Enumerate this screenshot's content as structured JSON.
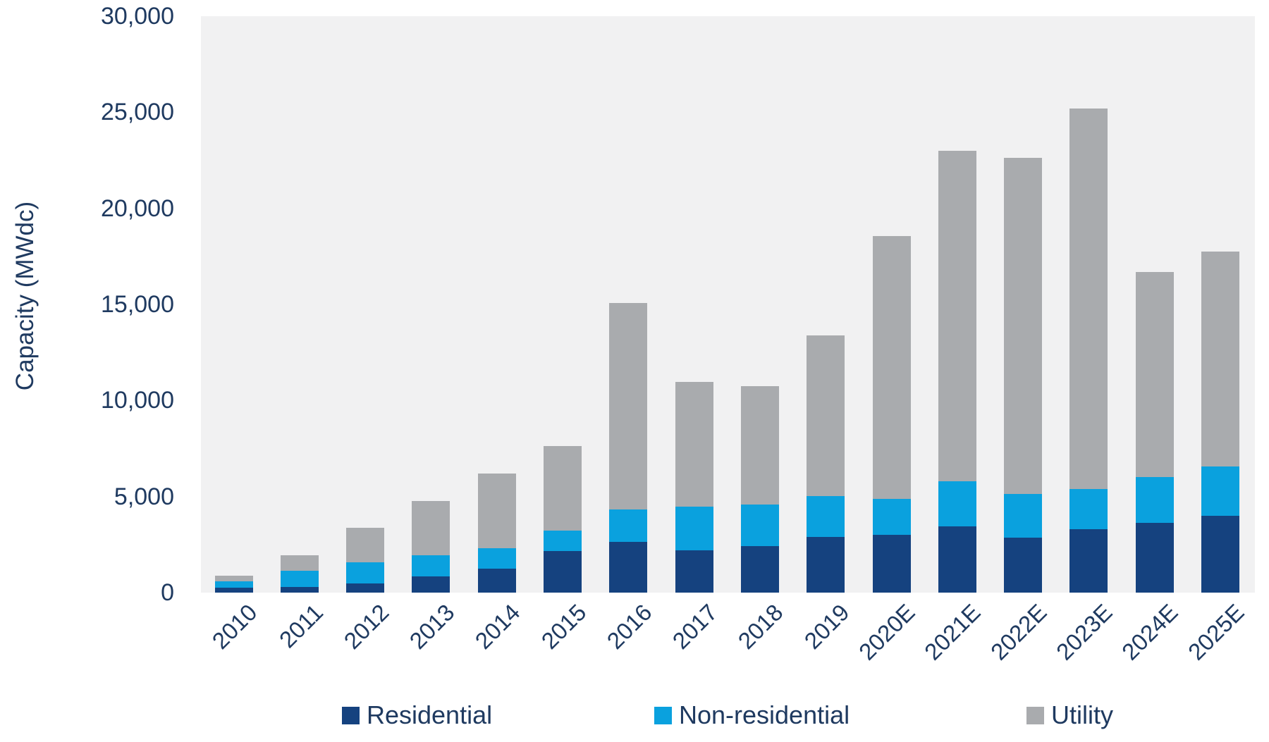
{
  "chart_data": {
    "type": "bar",
    "stacked": true,
    "title": "",
    "ylabel": "Capacity (MWdc)",
    "xlabel": "",
    "ylim": [
      0,
      30000
    ],
    "yticks": [
      0,
      5000,
      10000,
      15000,
      20000,
      25000,
      30000
    ],
    "ytick_labels": [
      "0",
      "5,000",
      "10,000",
      "15,000",
      "20,000",
      "25,000",
      "30,000"
    ],
    "grid": false,
    "legend_position": "bottom",
    "plot_background": "#f1f1f2",
    "categories": [
      "2010",
      "2011",
      "2012",
      "2013",
      "2014",
      "2015",
      "2016",
      "2017",
      "2018",
      "2019",
      "2020E",
      "2021E",
      "2022E",
      "2023E",
      "2024E",
      "2025E"
    ],
    "series": [
      {
        "name": "Residential",
        "color": "#15427f",
        "values": [
          245,
          305,
          490,
          835,
          1260,
          2175,
          2630,
          2200,
          2420,
          2885,
          3000,
          3460,
          2850,
          3300,
          3620,
          4010
        ]
      },
      {
        "name": "Non-residential",
        "color": "#0aa1de",
        "values": [
          340,
          830,
          1100,
          1125,
          1065,
          1040,
          1710,
          2275,
          2165,
          2130,
          1895,
          2350,
          2295,
          2090,
          2385,
          2545
        ]
      },
      {
        "name": "Utility",
        "color": "#a9abae",
        "values": [
          305,
          820,
          1800,
          2815,
          3880,
          4405,
          10740,
          6485,
          6155,
          8375,
          13655,
          17200,
          17495,
          19790,
          10675,
          11210
        ]
      }
    ]
  },
  "legend": {
    "items": [
      {
        "label": "Residential",
        "color": "#15427f"
      },
      {
        "label": "Non-residential",
        "color": "#0aa1de"
      },
      {
        "label": "Utility",
        "color": "#a9abae"
      }
    ]
  },
  "colors": {
    "text": "#1f3a60",
    "plot_background": "#f1f1f2",
    "page_background": "#ffffff"
  }
}
